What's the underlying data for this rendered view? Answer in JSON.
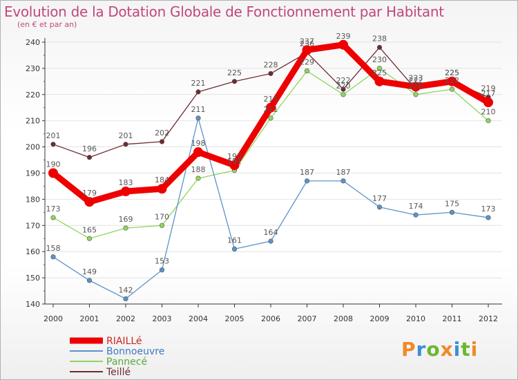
{
  "header": {
    "title": "Evolution de la Dotation Globale de Fonctionnement par Habitant",
    "subtitle": "(en € et par an)"
  },
  "brand": {
    "text": "Proxiti"
  },
  "colors": {
    "axis": "#333333",
    "grid": "#e2e2e2",
    "label": "#555555",
    "title": "#c0487c"
  },
  "chart_data": {
    "type": "line",
    "title": "Evolution de la Dotation Globale de Fonctionnement par Habitant",
    "subtitle": "(en € et par an)",
    "xlabel": "",
    "ylabel": "",
    "x": [
      "2000",
      "2001",
      "2002",
      "2003",
      "2004",
      "2005",
      "2006",
      "2007",
      "2008",
      "2009",
      "2010",
      "2011",
      "2012"
    ],
    "ylim": [
      140,
      240
    ],
    "yticks": [
      140,
      150,
      160,
      170,
      180,
      190,
      200,
      210,
      220,
      230,
      240
    ],
    "grid": true,
    "legend": "bottom-left",
    "series": [
      {
        "name": "RIAILLé",
        "color": "#ee0000",
        "values": [
          190,
          179,
          183,
          184,
          198,
          193,
          215,
          237,
          239,
          225,
          223,
          225,
          217
        ]
      },
      {
        "name": "Bonnoeuvre",
        "color": "#5b93c9",
        "values": [
          158,
          149,
          142,
          153,
          211,
          161,
          164,
          187,
          187,
          177,
          174,
          175,
          173
        ]
      },
      {
        "name": "Pannecé",
        "color": "#8ed65c",
        "values": [
          173,
          165,
          169,
          170,
          188,
          191,
          211,
          229,
          220,
          230,
          220,
          222,
          210
        ]
      },
      {
        "name": "Teillé",
        "color": "#6e2a30",
        "values": [
          201,
          196,
          201,
          202,
          221,
          225,
          228,
          236,
          222,
          238,
          222,
          225,
          219
        ]
      }
    ]
  }
}
